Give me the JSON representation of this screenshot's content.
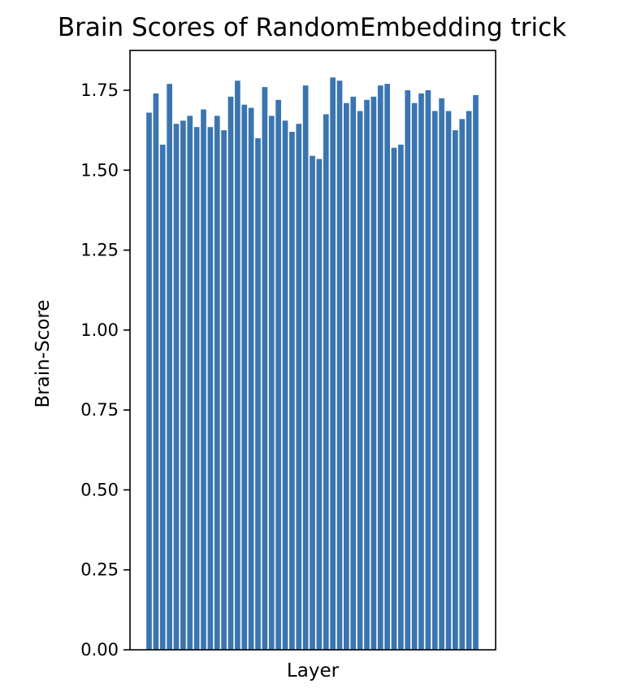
{
  "chart_data": {
    "type": "bar",
    "title": "Brain Scores of RandomEmbedding trick",
    "xlabel": "Layer",
    "ylabel": "Brain-Score",
    "ylim": [
      0,
      1.85
    ],
    "yticks": [
      "0.00",
      "0.25",
      "0.50",
      "0.75",
      "1.00",
      "1.25",
      "1.50",
      "1.75"
    ],
    "grid": false,
    "legend": "none",
    "bar_color": "#3a75b0",
    "values": [
      1.68,
      1.74,
      1.58,
      1.77,
      1.645,
      1.655,
      1.67,
      1.635,
      1.69,
      1.635,
      1.67,
      1.625,
      1.73,
      1.78,
      1.705,
      1.695,
      1.6,
      1.76,
      1.67,
      1.72,
      1.655,
      1.62,
      1.645,
      1.765,
      1.545,
      1.535,
      1.675,
      1.79,
      1.78,
      1.71,
      1.73,
      1.685,
      1.72,
      1.73,
      1.765,
      1.77,
      1.57,
      1.58,
      1.75,
      1.71,
      1.74,
      1.75,
      1.685,
      1.725,
      1.685,
      1.625,
      1.66,
      1.685,
      1.735
    ]
  }
}
